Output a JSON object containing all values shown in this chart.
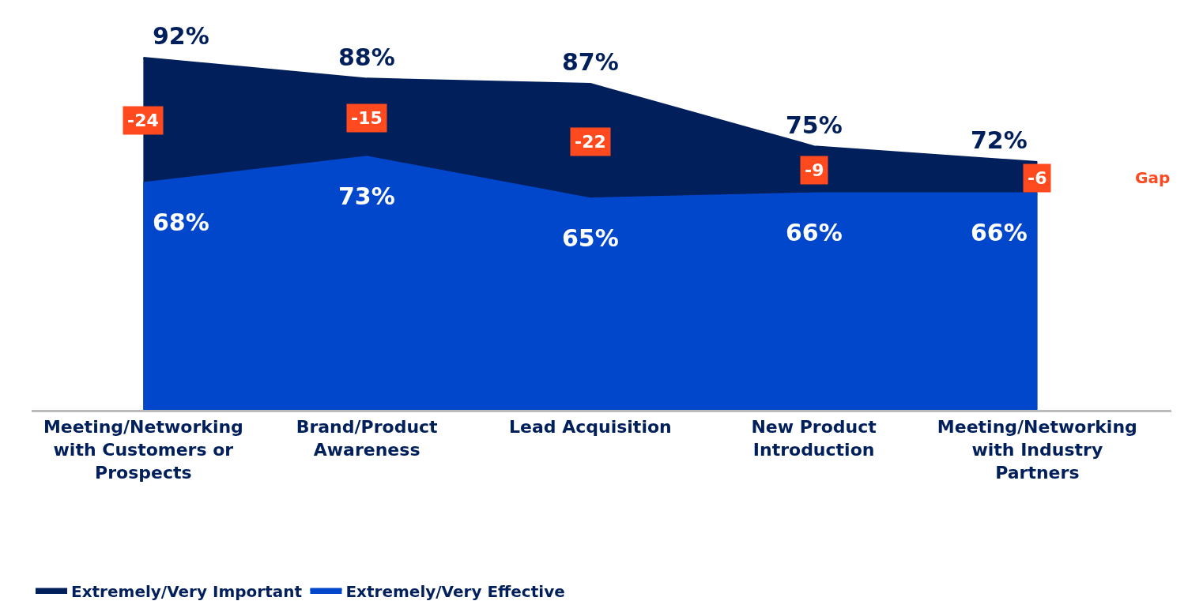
{
  "chart_data": {
    "type": "area",
    "categories": [
      "Meeting/Networking with Customers or Prospects",
      "Brand/Product Awareness",
      "Lead Acquisition",
      "New Product Introduction",
      "Meeting/Networking with Industry Partners"
    ],
    "series": [
      {
        "name": "Extremely/Very Important",
        "color": "#001f5b",
        "values": [
          92,
          88,
          87,
          75,
          72
        ],
        "value_labels": [
          "92%",
          "88%",
          "87%",
          "75%",
          "72%"
        ]
      },
      {
        "name": "Extremely/Very Effective",
        "color": "#0047cc",
        "values": [
          68,
          73,
          65,
          66,
          66
        ],
        "value_labels": [
          "68%",
          "73%",
          "65%",
          "66%",
          "66%"
        ]
      }
    ],
    "grid": false,
    "legend": "bottom left",
    "tick_labels": "x",
    "annotations": [
      "-24",
      "-15",
      "-22",
      "-9",
      "-6",
      "Gap"
    ]
  }
}
